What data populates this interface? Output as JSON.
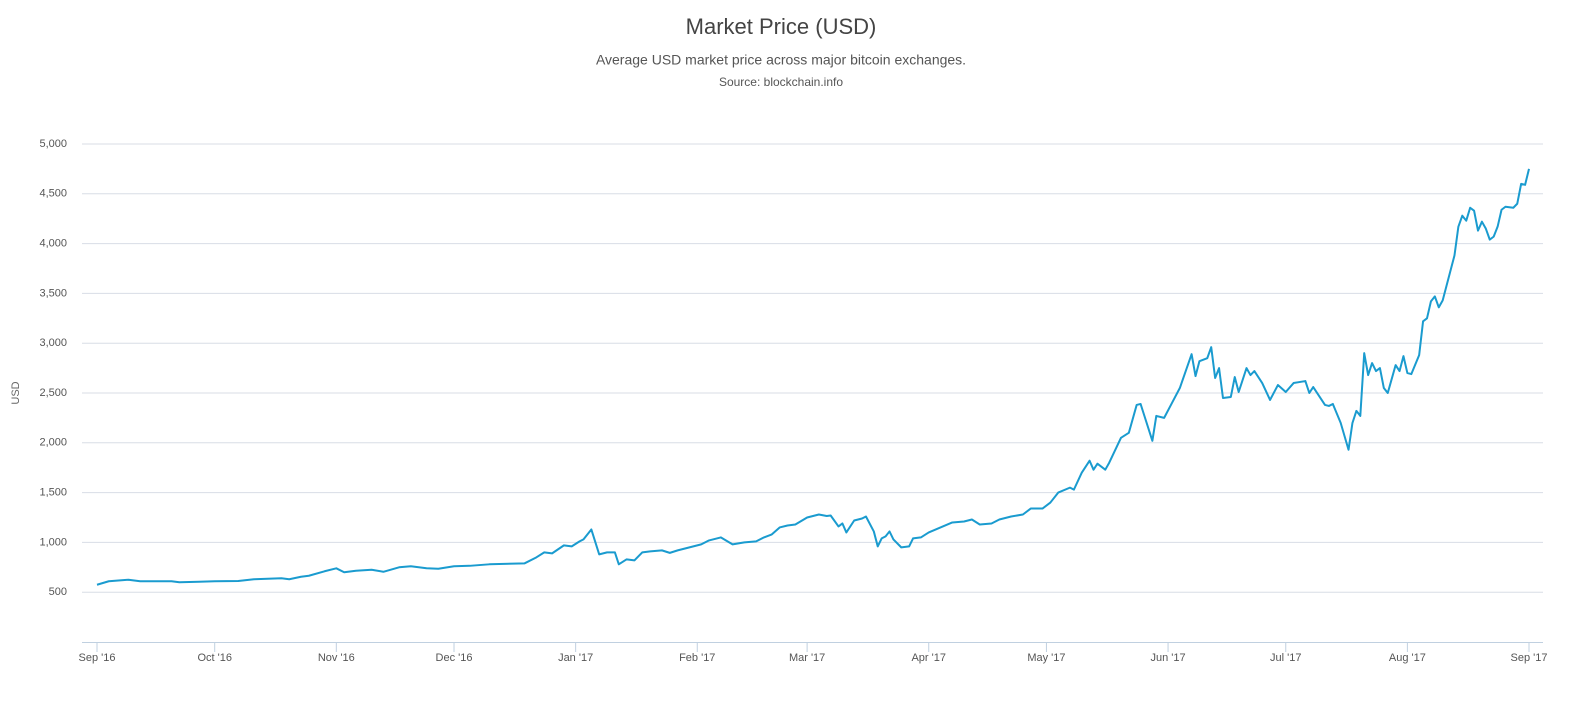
{
  "chart_data": {
    "type": "line",
    "title": "Market Price (USD)",
    "subtitle": "Average USD market price across major bitcoin exchanges.",
    "source": "Source: blockchain.info",
    "y_label": "USD",
    "color": "#1a9bcf",
    "grid": true,
    "xlim": [
      0,
      365
    ],
    "xticks": [
      {
        "value": 0,
        "label": "Sep '16"
      },
      {
        "value": 30,
        "label": "Oct '16"
      },
      {
        "value": 61,
        "label": "Nov '16"
      },
      {
        "value": 91,
        "label": "Dec '16"
      },
      {
        "value": 122,
        "label": "Jan '17"
      },
      {
        "value": 153,
        "label": "Feb '17"
      },
      {
        "value": 181,
        "label": "Mar '17"
      },
      {
        "value": 212,
        "label": "Apr '17"
      },
      {
        "value": 242,
        "label": "May '17"
      },
      {
        "value": 273,
        "label": "Jun '17"
      },
      {
        "value": 303,
        "label": "Jul '17"
      },
      {
        "value": 334,
        "label": "Aug '17"
      },
      {
        "value": 365,
        "label": "Sep '17"
      }
    ],
    "ylim": [
      0,
      5000
    ],
    "yticks": [
      500,
      {
        "value": 1000,
        "label": "1,000"
      },
      {
        "value": 1500,
        "label": "1,500"
      },
      {
        "value": 2000,
        "label": "2,000"
      },
      {
        "value": 2500,
        "label": "2,500"
      },
      {
        "value": 3000,
        "label": "3,000"
      },
      {
        "value": 3500,
        "label": "3,500"
      },
      {
        "value": 4000,
        "label": "4,000"
      },
      {
        "value": 4500,
        "label": "4,500"
      },
      {
        "value": 5000,
        "label": "5,000"
      }
    ],
    "x": [
      0,
      3,
      8,
      11,
      19,
      21,
      26,
      30,
      36,
      40,
      47,
      49,
      52,
      54,
      58,
      61,
      63,
      66,
      70,
      73,
      77,
      80,
      84,
      87,
      91,
      95,
      100,
      109,
      112,
      114,
      116,
      119,
      121,
      123,
      124,
      126,
      128,
      130,
      132,
      133,
      135,
      137,
      139,
      141,
      144,
      146,
      148,
      154,
      156,
      159,
      162,
      165,
      168,
      170,
      172,
      174,
      176,
      178,
      181,
      184,
      186,
      187,
      189,
      190,
      191,
      193,
      195,
      196,
      198,
      199,
      200,
      201,
      202,
      203,
      205,
      207,
      208,
      210,
      212,
      215,
      218,
      221,
      223,
      225,
      228,
      230,
      233,
      236,
      238,
      241,
      243,
      245,
      248,
      249,
      251,
      253,
      254,
      255,
      257,
      258,
      261,
      263,
      265,
      266,
      269,
      270,
      272,
      274,
      276,
      279,
      280,
      281,
      283,
      284,
      285,
      286,
      287,
      289,
      290,
      291,
      293,
      294,
      295,
      297,
      299,
      301,
      303,
      305,
      308,
      309,
      310,
      313,
      314,
      315,
      317,
      319,
      320,
      321,
      322,
      323,
      324,
      325,
      326,
      327,
      328,
      329,
      331,
      332,
      333,
      334,
      335,
      337,
      338,
      339,
      340,
      341,
      342,
      343,
      346,
      347,
      348,
      349,
      350,
      351,
      352,
      353,
      354,
      355,
      356,
      357,
      358,
      359,
      361,
      362,
      363,
      364,
      365
    ],
    "values": [
      575,
      610,
      625,
      610,
      610,
      600,
      605,
      610,
      612,
      630,
      640,
      630,
      655,
      665,
      710,
      740,
      700,
      715,
      725,
      705,
      750,
      760,
      740,
      735,
      760,
      765,
      780,
      790,
      850,
      900,
      890,
      970,
      960,
      1010,
      1030,
      1130,
      880,
      900,
      900,
      780,
      830,
      820,
      900,
      910,
      920,
      895,
      920,
      980,
      1020,
      1050,
      980,
      1000,
      1010,
      1050,
      1080,
      1150,
      1170,
      1180,
      1250,
      1280,
      1265,
      1270,
      1160,
      1190,
      1100,
      1220,
      1240,
      1260,
      1110,
      960,
      1040,
      1060,
      1110,
      1030,
      950,
      960,
      1040,
      1050,
      1100,
      1150,
      1200,
      1210,
      1230,
      1180,
      1190,
      1230,
      1260,
      1280,
      1340,
      1340,
      1400,
      1500,
      1550,
      1530,
      1700,
      1820,
      1730,
      1790,
      1730,
      1800,
      2050,
      2100,
      2380,
      2390,
      2020,
      2270,
      2250,
      2400,
      2550,
      2890,
      2670,
      2820,
      2850,
      2960,
      2650,
      2750,
      2450,
      2460,
      2660,
      2510,
      2750,
      2680,
      2720,
      2600,
      2430,
      2580,
      2510,
      2600,
      2620,
      2500,
      2560,
      2380,
      2370,
      2390,
      2200,
      1930,
      2200,
      2320,
      2270,
      2900,
      2680,
      2800,
      2720,
      2750,
      2550,
      2500,
      2780,
      2720,
      2870,
      2700,
      2690,
      2880,
      3220,
      3250,
      3420,
      3470,
      3360,
      3430,
      3880,
      4170,
      4280,
      4230,
      4360,
      4330,
      4130,
      4220,
      4150,
      4040,
      4070,
      4170,
      4340,
      4370,
      4360,
      4400,
      4600,
      4590,
      4750
    ]
  }
}
